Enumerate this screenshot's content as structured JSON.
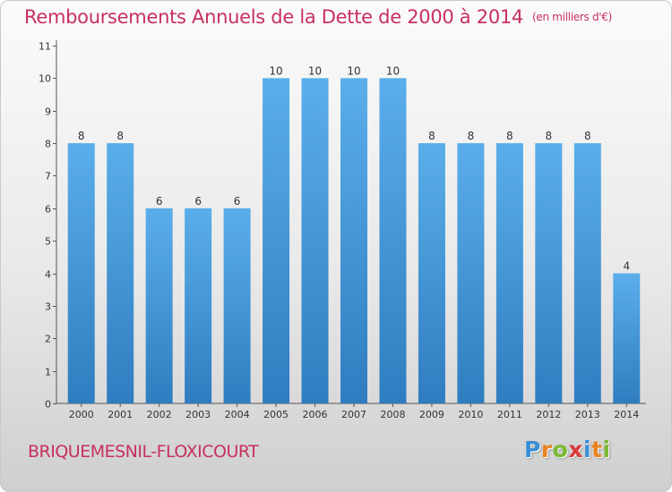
{
  "title": "Remboursements Annuels de la Dette de 2000 à 2014",
  "unit": "(en milliers d'€)",
  "commune": "BRIQUEMESNIL-FLOXICOURT",
  "brand": {
    "letters": [
      "P",
      "r",
      "o",
      "x",
      "i",
      "t",
      "i"
    ],
    "colors": [
      "#3a8fd6",
      "#e8841f",
      "#7ab932",
      "#d93a3a",
      "#3a8fd6",
      "#e8841f",
      "#7ab932"
    ]
  },
  "colors": {
    "bar_top": "#5aaeea",
    "bar_bottom": "#2f7dc0",
    "title": "#c8305e"
  },
  "chart_data": {
    "type": "bar",
    "categories": [
      "2000",
      "2001",
      "2002",
      "2003",
      "2004",
      "2005",
      "2006",
      "2007",
      "2008",
      "2009",
      "2010",
      "2011",
      "2012",
      "2013",
      "2014"
    ],
    "values": [
      8,
      8,
      6,
      6,
      6,
      10,
      10,
      10,
      10,
      8,
      8,
      8,
      8,
      8,
      4
    ],
    "ylim": [
      0,
      11
    ],
    "yticks": [
      0,
      1,
      2,
      3,
      4,
      5,
      6,
      7,
      8,
      9,
      10,
      11
    ],
    "xlabel": "",
    "ylabel": "",
    "grid": false,
    "data_labels": true
  }
}
